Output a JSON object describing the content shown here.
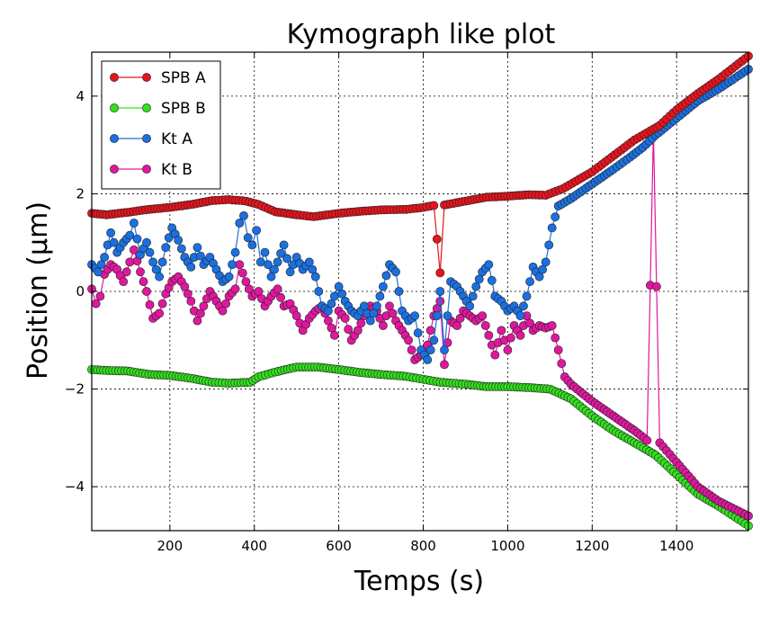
{
  "chart_data": {
    "type": "line",
    "title": "Kymograph like plot",
    "xlabel": "Temps (s)",
    "ylabel": "Position (µm)",
    "xlim": [
      15,
      1570
    ],
    "ylim": [
      -4.9,
      4.9
    ],
    "xticks": [
      200,
      400,
      600,
      800,
      1000,
      1200,
      1400
    ],
    "yticks": [
      -4,
      -2,
      0,
      2,
      4
    ],
    "xtick_labels": [
      "200",
      "400",
      "600",
      "800",
      "1000",
      "1200",
      "1400"
    ],
    "ytick_labels": [
      "−4",
      "−2",
      "0",
      "2",
      "4"
    ],
    "grid": true,
    "legend": "top-left",
    "series": [
      {
        "name": "SPB A",
        "color": "#e8141c",
        "points": [
          [
            15,
            1.6
          ],
          [
            50,
            1.57
          ],
          [
            100,
            1.62
          ],
          [
            150,
            1.68
          ],
          [
            200,
            1.72
          ],
          [
            250,
            1.78
          ],
          [
            300,
            1.86
          ],
          [
            340,
            1.88
          ],
          [
            380,
            1.85
          ],
          [
            410,
            1.78
          ],
          [
            450,
            1.63
          ],
          [
            500,
            1.57
          ],
          [
            540,
            1.53
          ],
          [
            600,
            1.6
          ],
          [
            650,
            1.64
          ],
          [
            700,
            1.67
          ],
          [
            760,
            1.68
          ],
          [
            800,
            1.72
          ],
          [
            825,
            1.76
          ],
          [
            840,
            0.38
          ],
          [
            850,
            1.77
          ],
          [
            900,
            1.85
          ],
          [
            950,
            1.93
          ],
          [
            1000,
            1.95
          ],
          [
            1050,
            1.98
          ],
          [
            1090,
            1.97
          ],
          [
            1130,
            2.1
          ],
          [
            1200,
            2.45
          ],
          [
            1300,
            3.1
          ],
          [
            1360,
            3.4
          ],
          [
            1400,
            3.72
          ],
          [
            1450,
            4.05
          ],
          [
            1500,
            4.35
          ],
          [
            1570,
            4.82
          ]
        ]
      },
      {
        "name": "SPB B",
        "color": "#33e11e",
        "points": [
          [
            15,
            -1.6
          ],
          [
            50,
            -1.62
          ],
          [
            100,
            -1.63
          ],
          [
            150,
            -1.7
          ],
          [
            200,
            -1.72
          ],
          [
            250,
            -1.78
          ],
          [
            300,
            -1.86
          ],
          [
            340,
            -1.88
          ],
          [
            390,
            -1.86
          ],
          [
            410,
            -1.75
          ],
          [
            450,
            -1.65
          ],
          [
            500,
            -1.55
          ],
          [
            550,
            -1.55
          ],
          [
            600,
            -1.6
          ],
          [
            650,
            -1.66
          ],
          [
            700,
            -1.7
          ],
          [
            760,
            -1.74
          ],
          [
            800,
            -1.8
          ],
          [
            840,
            -1.86
          ],
          [
            900,
            -1.9
          ],
          [
            950,
            -1.95
          ],
          [
            1000,
            -1.95
          ],
          [
            1050,
            -1.97
          ],
          [
            1100,
            -2.0
          ],
          [
            1150,
            -2.2
          ],
          [
            1200,
            -2.55
          ],
          [
            1250,
            -2.85
          ],
          [
            1300,
            -3.1
          ],
          [
            1350,
            -3.35
          ],
          [
            1400,
            -3.75
          ],
          [
            1450,
            -4.15
          ],
          [
            1500,
            -4.4
          ],
          [
            1570,
            -4.8
          ]
        ]
      },
      {
        "name": "Kt A",
        "color": "#1a70e0",
        "points": [
          [
            15,
            0.55
          ],
          [
            30,
            0.4
          ],
          [
            45,
            0.7
          ],
          [
            60,
            1.2
          ],
          [
            75,
            0.8
          ],
          [
            90,
            1.0
          ],
          [
            105,
            1.15
          ],
          [
            115,
            1.4
          ],
          [
            130,
            0.75
          ],
          [
            145,
            1.0
          ],
          [
            160,
            0.6
          ],
          [
            175,
            0.3
          ],
          [
            190,
            0.9
          ],
          [
            205,
            1.3
          ],
          [
            220,
            1.05
          ],
          [
            235,
            0.7
          ],
          [
            250,
            0.5
          ],
          [
            265,
            0.9
          ],
          [
            280,
            0.55
          ],
          [
            295,
            0.7
          ],
          [
            310,
            0.45
          ],
          [
            325,
            0.2
          ],
          [
            340,
            0.3
          ],
          [
            355,
            0.8
          ],
          [
            365,
            1.4
          ],
          [
            375,
            1.55
          ],
          [
            385,
            1.1
          ],
          [
            395,
            0.95
          ],
          [
            405,
            1.25
          ],
          [
            415,
            0.6
          ],
          [
            425,
            0.8
          ],
          [
            440,
            0.3
          ],
          [
            455,
            0.6
          ],
          [
            470,
            0.95
          ],
          [
            485,
            0.4
          ],
          [
            500,
            0.7
          ],
          [
            515,
            0.45
          ],
          [
            530,
            0.6
          ],
          [
            545,
            0.3
          ],
          [
            560,
            -0.3
          ],
          [
            575,
            -0.4
          ],
          [
            590,
            -0.1
          ],
          [
            600,
            0.1
          ],
          [
            615,
            -0.2
          ],
          [
            630,
            -0.4
          ],
          [
            645,
            -0.5
          ],
          [
            660,
            -0.3
          ],
          [
            675,
            -0.6
          ],
          [
            690,
            -0.3
          ],
          [
            705,
            0.1
          ],
          [
            720,
            0.55
          ],
          [
            735,
            0.4
          ],
          [
            750,
            -0.4
          ],
          [
            765,
            -0.6
          ],
          [
            780,
            -0.5
          ],
          [
            795,
            -1.2
          ],
          [
            810,
            -1.4
          ],
          [
            825,
            -1.0
          ],
          [
            840,
            0.0
          ],
          [
            850,
            -1.2
          ],
          [
            865,
            0.2
          ],
          [
            880,
            0.1
          ],
          [
            895,
            -0.1
          ],
          [
            910,
            -0.3
          ],
          [
            925,
            0.1
          ],
          [
            940,
            0.4
          ],
          [
            955,
            0.55
          ],
          [
            970,
            -0.1
          ],
          [
            985,
            -0.2
          ],
          [
            1000,
            -0.4
          ],
          [
            1015,
            -0.3
          ],
          [
            1030,
            -0.5
          ],
          [
            1045,
            -0.1
          ],
          [
            1060,
            0.5
          ],
          [
            1075,
            0.3
          ],
          [
            1090,
            0.6
          ],
          [
            1105,
            1.3
          ],
          [
            1120,
            1.75
          ],
          [
            1150,
            1.9
          ],
          [
            1200,
            2.2
          ],
          [
            1250,
            2.5
          ],
          [
            1290,
            2.75
          ],
          [
            1320,
            2.95
          ],
          [
            1350,
            3.2
          ],
          [
            1400,
            3.55
          ],
          [
            1450,
            3.9
          ],
          [
            1500,
            4.15
          ],
          [
            1570,
            4.55
          ]
        ]
      },
      {
        "name": "Kt B",
        "color": "#e0179e",
        "points": [
          [
            15,
            0.05
          ],
          [
            25,
            -0.25
          ],
          [
            35,
            -0.1
          ],
          [
            45,
            0.35
          ],
          [
            60,
            0.55
          ],
          [
            75,
            0.45
          ],
          [
            90,
            0.2
          ],
          [
            105,
            0.6
          ],
          [
            115,
            0.85
          ],
          [
            130,
            0.4
          ],
          [
            145,
            0.0
          ],
          [
            160,
            -0.55
          ],
          [
            175,
            -0.45
          ],
          [
            190,
            -0.05
          ],
          [
            205,
            0.2
          ],
          [
            220,
            0.3
          ],
          [
            235,
            0.1
          ],
          [
            250,
            -0.2
          ],
          [
            265,
            -0.6
          ],
          [
            280,
            -0.3
          ],
          [
            295,
            0.0
          ],
          [
            310,
            -0.2
          ],
          [
            325,
            -0.4
          ],
          [
            340,
            -0.1
          ],
          [
            355,
            0.05
          ],
          [
            365,
            0.55
          ],
          [
            380,
            0.2
          ],
          [
            395,
            -0.1
          ],
          [
            410,
            0.0
          ],
          [
            425,
            -0.3
          ],
          [
            440,
            -0.1
          ],
          [
            455,
            0.05
          ],
          [
            470,
            -0.3
          ],
          [
            485,
            -0.25
          ],
          [
            500,
            -0.5
          ],
          [
            515,
            -0.8
          ],
          [
            530,
            -0.55
          ],
          [
            545,
            -0.4
          ],
          [
            560,
            -0.3
          ],
          [
            575,
            -0.6
          ],
          [
            590,
            -0.9
          ],
          [
            600,
            -0.4
          ],
          [
            615,
            -0.55
          ],
          [
            630,
            -1.0
          ],
          [
            645,
            -0.8
          ],
          [
            660,
            -0.5
          ],
          [
            675,
            -0.3
          ],
          [
            690,
            -0.4
          ],
          [
            705,
            -0.7
          ],
          [
            720,
            -0.3
          ],
          [
            735,
            -0.6
          ],
          [
            750,
            -0.8
          ],
          [
            765,
            -1.0
          ],
          [
            780,
            -1.4
          ],
          [
            795,
            -1.3
          ],
          [
            810,
            -1.1
          ],
          [
            825,
            -0.5
          ],
          [
            840,
            -0.2
          ],
          [
            850,
            -1.5
          ],
          [
            865,
            -0.6
          ],
          [
            880,
            -0.7
          ],
          [
            895,
            -0.4
          ],
          [
            910,
            -0.5
          ],
          [
            925,
            -0.6
          ],
          [
            940,
            -0.5
          ],
          [
            955,
            -0.9
          ],
          [
            970,
            -1.3
          ],
          [
            985,
            -0.8
          ],
          [
            1000,
            -1.2
          ],
          [
            1015,
            -0.7
          ],
          [
            1030,
            -0.9
          ],
          [
            1045,
            -0.5
          ],
          [
            1060,
            -0.8
          ],
          [
            1075,
            -0.7
          ],
          [
            1090,
            -0.75
          ],
          [
            1105,
            -0.7
          ],
          [
            1120,
            -1.2
          ],
          [
            1135,
            -1.75
          ],
          [
            1150,
            -1.9
          ],
          [
            1200,
            -2.25
          ],
          [
            1250,
            -2.55
          ],
          [
            1300,
            -2.85
          ],
          [
            1330,
            -3.05
          ],
          [
            1345,
            3.3
          ],
          [
            1360,
            -3.1
          ],
          [
            1400,
            -3.5
          ],
          [
            1450,
            -4.0
          ],
          [
            1500,
            -4.3
          ],
          [
            1570,
            -4.6
          ]
        ]
      }
    ]
  }
}
